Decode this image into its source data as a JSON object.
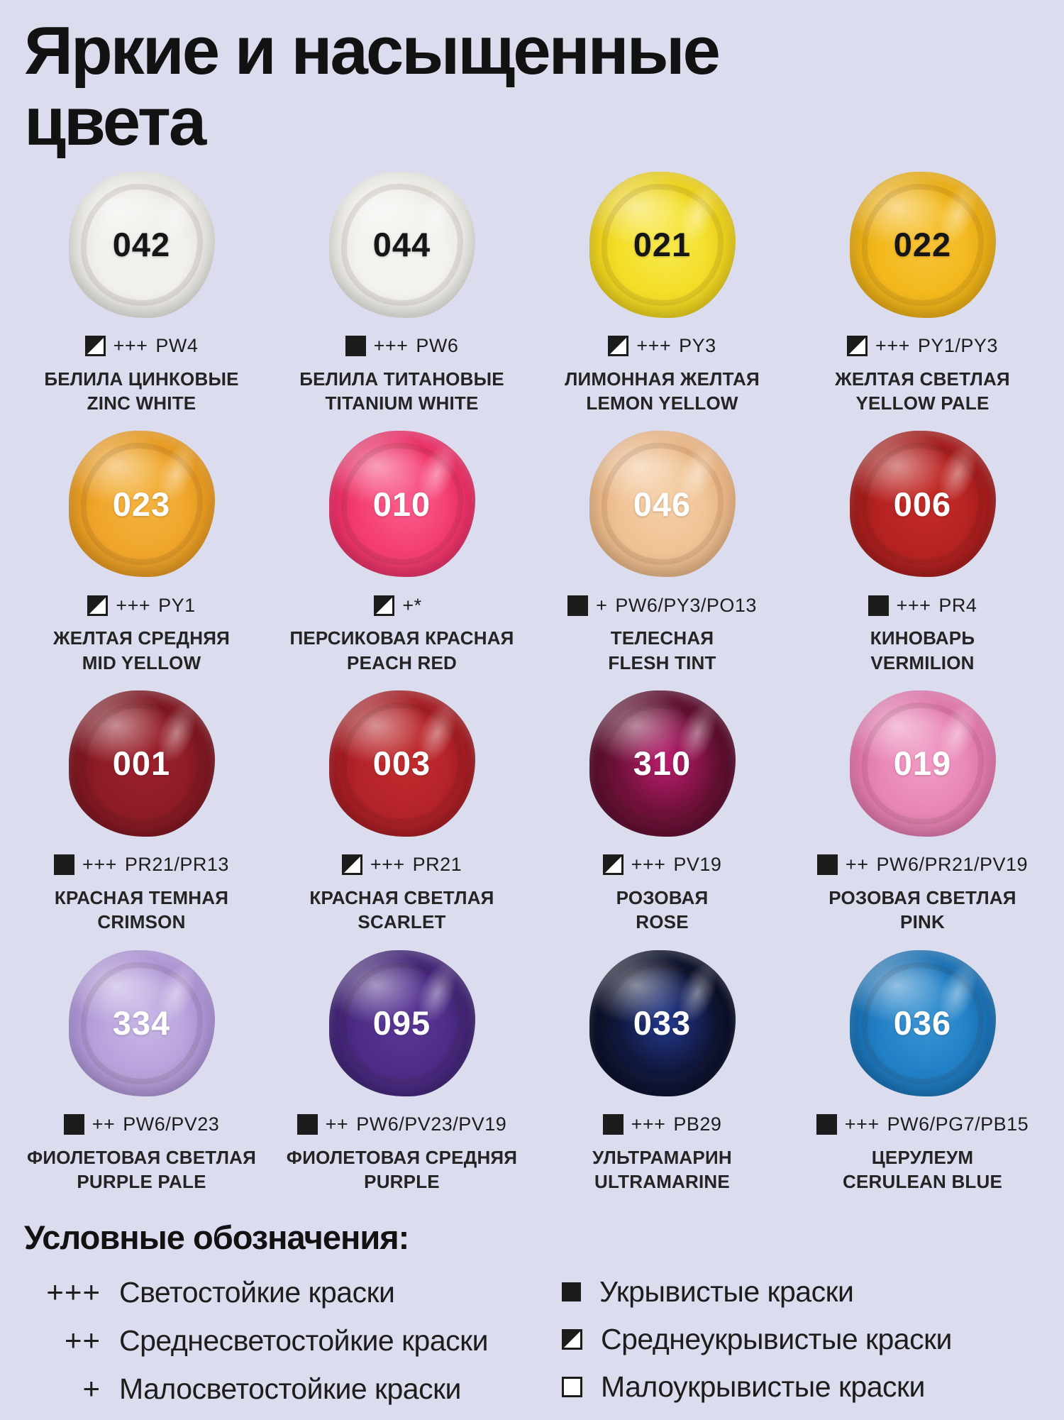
{
  "title": "Яркие и насыщенные цвета",
  "colors": {
    "background": "#dbddef",
    "text": "#1b1b1b"
  },
  "swatches": [
    {
      "number": "042",
      "opacity_symbol": "semi",
      "lightfastness": "+++",
      "pigments": "PW4",
      "name_ru": "БЕЛИЛА ЦИНКОВЫЕ",
      "name_en": "ZINC WHITE",
      "color_main": "#f1f0ec",
      "color_dark": "#d8d6d0",
      "color_accent": "rgba(255,255,255,0)",
      "number_color": "#161616"
    },
    {
      "number": "044",
      "opacity_symbol": "opaque",
      "lightfastness": "+++",
      "pigments": "PW6",
      "name_ru": "БЕЛИЛА ТИТАНОВЫЕ",
      "name_en": "TITANIUM WHITE",
      "color_main": "#f3f2ee",
      "color_dark": "#dbd9d2",
      "color_accent": "rgba(255,255,255,0)",
      "number_color": "#161616"
    },
    {
      "number": "021",
      "opacity_symbol": "semi",
      "lightfastness": "+++",
      "pigments": "PY3",
      "name_ru": "ЛИМОННАЯ ЖЕЛТАЯ",
      "name_en": "LEMON YELLOW",
      "color_main": "#f4de28",
      "color_dark": "#dcbc0e",
      "color_accent": "rgba(255,255,160,0.35)",
      "number_color": "#161616"
    },
    {
      "number": "022",
      "opacity_symbol": "semi",
      "lightfastness": "+++",
      "pigments": "PY1/PY3",
      "name_ru": "ЖЕЛТАЯ СВЕТЛАЯ",
      "name_en": "YELLOW PALE",
      "color_main": "#f3b81d",
      "color_dark": "#d89d0c",
      "color_accent": "rgba(255,220,120,0.30)",
      "number_color": "#161616"
    },
    {
      "number": "023",
      "opacity_symbol": "semi",
      "lightfastness": "+++",
      "pigments": "PY1",
      "name_ru": "ЖЕЛТАЯ СРЕДНЯЯ",
      "name_en": "MID YELLOW",
      "color_main": "#f0a62c",
      "color_dark": "#d8880f",
      "color_accent": "rgba(255,210,110,0.30)",
      "number_color": "#ffffff"
    },
    {
      "number": "010",
      "opacity_symbol": "semi",
      "lightfastness": "+*",
      "pigments": "",
      "name_ru": "ПЕРСИКОВАЯ КРАСНАЯ",
      "name_en": "PEACH RED",
      "color_main": "#f43e72",
      "color_dark": "#d71b55",
      "color_accent": "rgba(255,122,165,0.55)",
      "number_color": "#ffffff"
    },
    {
      "number": "046",
      "opacity_symbol": "opaque",
      "lightfastness": "+",
      "pigments": "PW6/PY3/PO13",
      "name_ru": "ТЕЛЕСНАЯ",
      "name_en": "FLESH TINT",
      "color_main": "#f0c294",
      "color_dark": "#dca370",
      "color_accent": "rgba(255,235,205,0.35)",
      "number_color": "#ffffff"
    },
    {
      "number": "006",
      "opacity_symbol": "opaque",
      "lightfastness": "+++",
      "pigments": "PR4",
      "name_ru": "КИНОВАРЬ",
      "name_en": "VERMILION",
      "color_main": "#b52322",
      "color_dark": "#8b1414",
      "color_accent": "rgba(216,53,43,0.45)",
      "number_color": "#ffffff"
    },
    {
      "number": "001",
      "opacity_symbol": "opaque",
      "lightfastness": "+++",
      "pigments": "PR21/PR13",
      "name_ru": "КРАСНАЯ ТЕМНАЯ",
      "name_en": "CRIMSON",
      "color_main": "#8e1c26",
      "color_dark": "#660f19",
      "color_accent": "rgba(176,40,55,0.40)",
      "number_color": "#ffffff"
    },
    {
      "number": "003",
      "opacity_symbol": "semi",
      "lightfastness": "+++",
      "pigments": "PR21",
      "name_ru": "КРАСНАЯ СВЕТЛАЯ",
      "name_en": "SCARLET",
      "color_main": "#b4232a",
      "color_dark": "#8c1318",
      "color_accent": "rgba(210,58,52,0.45)",
      "number_color": "#ffffff"
    },
    {
      "number": "310",
      "opacity_symbol": "semi",
      "lightfastness": "+++",
      "pigments": "PV19",
      "name_ru": "РОЗОВАЯ",
      "name_en": "ROSE",
      "color_main": "#6f1139",
      "color_dark": "#420a21",
      "color_accent": "rgba(214,33,131,0.75)",
      "number_color": "#ffffff"
    },
    {
      "number": "019",
      "opacity_symbol": "opaque",
      "lightfastness": "++",
      "pigments": "PW6/PR21/PV19",
      "name_ru": "РОЗОВАЯ СВЕТЛАЯ",
      "name_en": "PINK",
      "color_main": "#e886b6",
      "color_dark": "#d2609b",
      "color_accent": "rgba(255,190,220,0.40)",
      "number_color": "#ffffff"
    },
    {
      "number": "334",
      "opacity_symbol": "opaque",
      "lightfastness": "++",
      "pigments": "PW6/PV23",
      "name_ru": "ФИОЛЕТОВАЯ СВЕТЛАЯ",
      "name_en": "PURPLE PALE",
      "color_main": "#b8a2dc",
      "color_dark": "#9b7ec9",
      "color_accent": "rgba(230,220,250,0.35)",
      "number_color": "#ffffff"
    },
    {
      "number": "095",
      "opacity_symbol": "opaque",
      "lightfastness": "++",
      "pigments": "PW6/PV23/PV19",
      "name_ru": "ФИОЛЕТОВАЯ СРЕДНЯЯ",
      "name_en": "PURPLE",
      "color_main": "#4d2d88",
      "color_dark": "#32195d",
      "color_accent": "rgba(110,70,170,0.45)",
      "number_color": "#ffffff"
    },
    {
      "number": "033",
      "opacity_symbol": "opaque",
      "lightfastness": "+++",
      "pigments": "PB29",
      "name_ru": "УЛЬТРАМАРИН",
      "name_en": "ULTRAMARINE",
      "color_main": "#10173c",
      "color_dark": "#04060f",
      "color_accent": "rgba(46,73,181,0.70)",
      "number_color": "#ffffff"
    },
    {
      "number": "036",
      "opacity_symbol": "opaque",
      "lightfastness": "+++",
      "pigments": "PW6/PG7/PB15",
      "name_ru": "ЦЕРУЛЕУМ",
      "name_en": "CERULEAN BLUE",
      "color_main": "#2280c6",
      "color_dark": "#0e5c9b",
      "color_accent": "rgba(85,170,225,0.50)",
      "number_color": "#ffffff"
    }
  ],
  "legend": {
    "heading": "Условные обозначения:",
    "lightfastness_items": [
      {
        "symbol": "+++",
        "label": "Светостойкие краски"
      },
      {
        "symbol": "++",
        "label": "Среднесветостойкие краски"
      },
      {
        "symbol": "+",
        "label": "Малосветостойкие краски"
      }
    ],
    "opacity_items": [
      {
        "symbol": "opaque",
        "label": "Укрывистые краски"
      },
      {
        "symbol": "semi",
        "label": "Среднеукрывистые краски"
      },
      {
        "symbol": "low",
        "label": "Малоукрывистые краски"
      }
    ]
  }
}
